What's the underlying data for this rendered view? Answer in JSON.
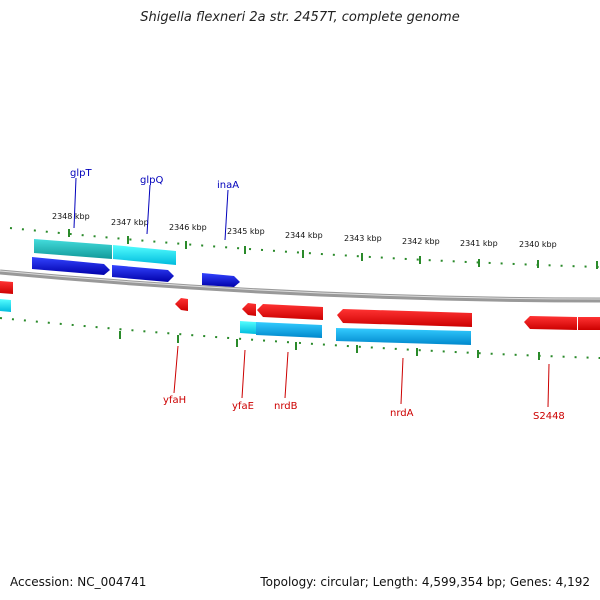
{
  "header": {
    "title": "Shigella flexneri 2a str. 2457T, complete genome"
  },
  "footer": {
    "accession": "Accession: NC_004741",
    "summary": "Topology: circular; Length: 4,599,354 bp; Genes: 4,192"
  },
  "scale_labels": [
    "2348 kbp",
    "2347 kbp",
    "2346 kbp",
    "2345 kbp",
    "2344 kbp",
    "2343 kbp",
    "2342 kbp",
    "2341 kbp",
    "2340 kbp"
  ],
  "genes_forward": [
    "glpT",
    "glpQ",
    "inaA"
  ],
  "genes_reverse": [
    "yfaH",
    "yfaE",
    "nrdB",
    "nrdA",
    "S2448"
  ],
  "colors": {
    "forward_gene": "#0000cc",
    "forward_feature": "#00ccee",
    "reverse_gene": "#ee0000",
    "reverse_feature": "#0099dd",
    "forward_label": "#0000bb",
    "reverse_label": "#cc0000",
    "tick": "#228822",
    "backbone": "#888888"
  }
}
